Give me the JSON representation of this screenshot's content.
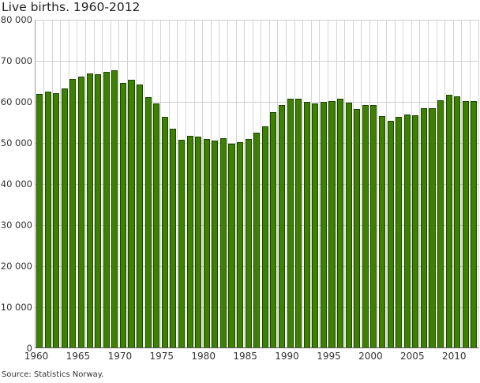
{
  "chart_data": {
    "type": "bar",
    "title": "Live births. 1960-2012",
    "xlabel": "",
    "ylabel": "",
    "ylim": [
      0,
      80000
    ],
    "yticks": [
      0,
      10000,
      20000,
      30000,
      40000,
      50000,
      60000,
      70000,
      80000
    ],
    "ytick_labels": [
      "0",
      "10 000",
      "20 000",
      "30 000",
      "40 000",
      "50 000",
      "60 000",
      "70 000",
      "80 000"
    ],
    "xtick_labels": [
      "1960",
      "1965",
      "1970",
      "1975",
      "1980",
      "1985",
      "1990",
      "1995",
      "2000",
      "2005",
      "2010"
    ],
    "grid": true,
    "legend": null,
    "bar_color": "#3e8000",
    "bar_border_color": "#1c4800",
    "categories": [
      1960,
      1961,
      1962,
      1963,
      1964,
      1965,
      1966,
      1967,
      1968,
      1969,
      1970,
      1971,
      1972,
      1973,
      1974,
      1975,
      1976,
      1977,
      1978,
      1979,
      1980,
      1981,
      1982,
      1983,
      1984,
      1985,
      1986,
      1987,
      1988,
      1989,
      1990,
      1991,
      1992,
      1993,
      1994,
      1995,
      1996,
      1997,
      1998,
      1999,
      2000,
      2001,
      2002,
      2003,
      2004,
      2005,
      2006,
      2007,
      2008,
      2009,
      2010,
      2011,
      2012
    ],
    "values": [
      61880,
      62500,
      62110,
      63210,
      65520,
      66150,
      66980,
      66730,
      67310,
      67630,
      64560,
      65440,
      64230,
      61150,
      59560,
      56290,
      53400,
      50710,
      51670,
      51480,
      50900,
      50640,
      51100,
      49870,
      50130,
      51020,
      52440,
      53980,
      57440,
      59230,
      60830,
      60770,
      60000,
      59620,
      60000,
      60190,
      60830,
      59810,
      58270,
      59230,
      59170,
      56540,
      55380,
      56350,
      56920,
      56670,
      58460,
      58400,
      60380,
      61670,
      61290,
      60130,
      60130
    ]
  },
  "source": "Source: Statistics Norway."
}
